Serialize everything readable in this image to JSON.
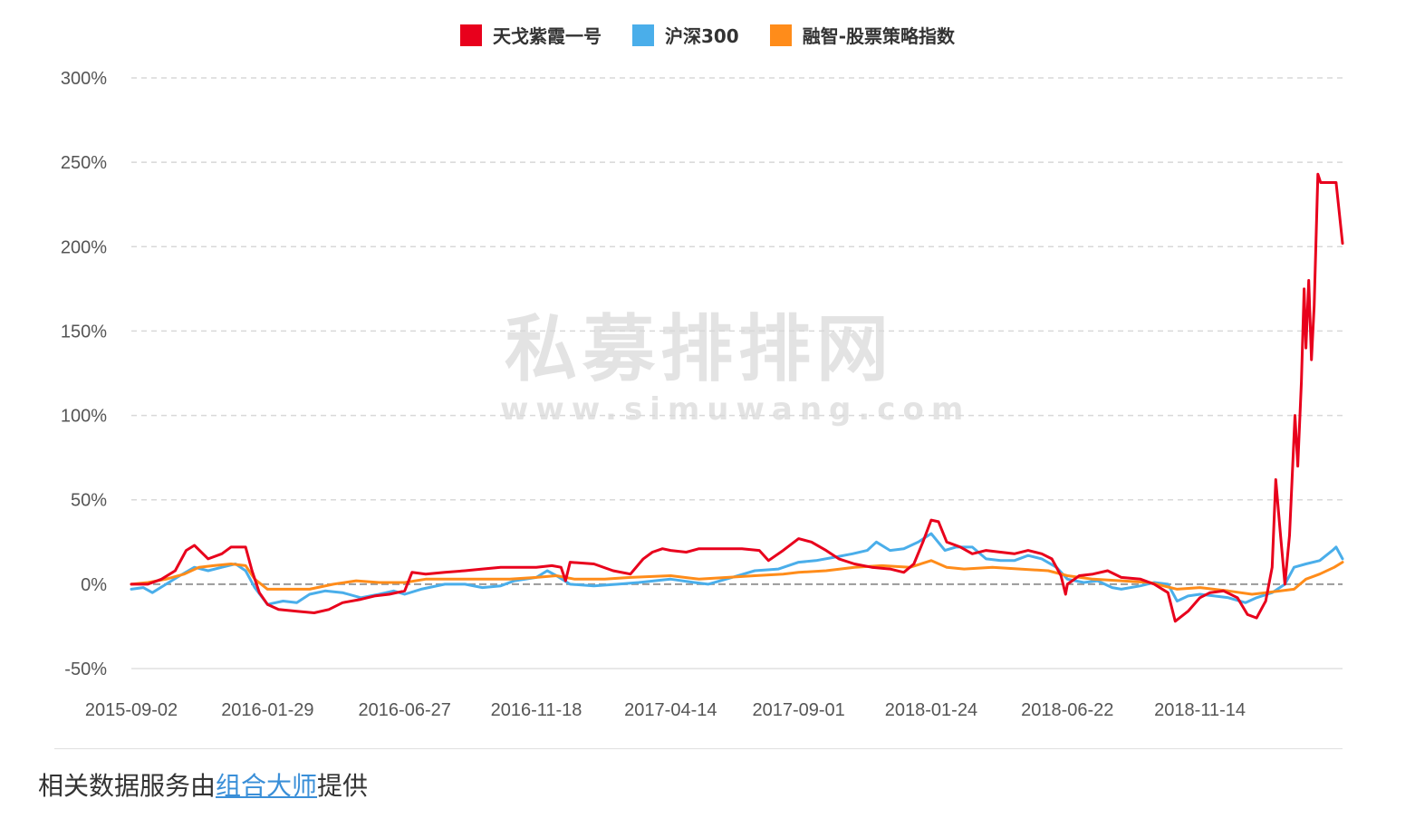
{
  "legend": [
    {
      "label": "天戈紫霞一号",
      "color": "#e8001c"
    },
    {
      "label": "沪深300",
      "color": "#4aaeea"
    },
    {
      "label": "融智-股票策略指数",
      "color": "#ff8c1a"
    }
  ],
  "watermark": {
    "main": "私募排排网",
    "sub": "www.simuwang.com"
  },
  "footer": {
    "prefix": "相关数据服务由",
    "link": "组合大师",
    "suffix": "提供"
  },
  "chart_data": {
    "type": "line",
    "title": "",
    "xlabel": "",
    "ylabel": "",
    "ylim": [
      -50,
      300
    ],
    "yticks": [
      "300%",
      "250%",
      "200%",
      "150%",
      "100%",
      "50%",
      "0%",
      "-50%"
    ],
    "ytick_values": [
      300,
      250,
      200,
      150,
      100,
      50,
      0,
      -50
    ],
    "xticks": [
      "2015-09-02",
      "2016-01-29",
      "2016-06-27",
      "2016-11-18",
      "2017-04-14",
      "2017-09-01",
      "2018-01-24",
      "2018-06-22",
      "2018-11-14"
    ],
    "x_end": "2019-04-19",
    "grid": "horizontal-dashed",
    "legend_position": "top-center",
    "series": [
      {
        "name": "天戈紫霞一号",
        "color": "#e8001c",
        "points": [
          [
            "2015-09-02",
            0
          ],
          [
            "2015-09-20",
            0
          ],
          [
            "2015-10-05",
            3
          ],
          [
            "2015-10-20",
            8
          ],
          [
            "2015-11-01",
            20
          ],
          [
            "2015-11-10",
            23
          ],
          [
            "2015-11-25",
            15
          ],
          [
            "2015-12-10",
            18
          ],
          [
            "2015-12-20",
            22
          ],
          [
            "2016-01-05",
            22
          ],
          [
            "2016-01-12",
            8
          ],
          [
            "2016-01-20",
            -5
          ],
          [
            "2016-01-29",
            -12
          ],
          [
            "2016-02-10",
            -15
          ],
          [
            "2016-03-01",
            -16
          ],
          [
            "2016-03-20",
            -17
          ],
          [
            "2016-04-05",
            -15
          ],
          [
            "2016-04-20",
            -11
          ],
          [
            "2016-05-10",
            -9
          ],
          [
            "2016-05-25",
            -7
          ],
          [
            "2016-06-10",
            -6
          ],
          [
            "2016-06-27",
            -4
          ],
          [
            "2016-07-05",
            7
          ],
          [
            "2016-07-20",
            6
          ],
          [
            "2016-08-10",
            7
          ],
          [
            "2016-09-01",
            8
          ],
          [
            "2016-09-20",
            9
          ],
          [
            "2016-10-10",
            10
          ],
          [
            "2016-10-30",
            10
          ],
          [
            "2016-11-18",
            10
          ],
          [
            "2016-12-05",
            11
          ],
          [
            "2016-12-15",
            10
          ],
          [
            "2016-12-20",
            2
          ],
          [
            "2016-12-25",
            13
          ],
          [
            "2017-01-20",
            12
          ],
          [
            "2017-02-10",
            8
          ],
          [
            "2017-03-01",
            6
          ],
          [
            "2017-03-15",
            15
          ],
          [
            "2017-03-25",
            19
          ],
          [
            "2017-04-05",
            21
          ],
          [
            "2017-04-14",
            20
          ],
          [
            "2017-05-01",
            19
          ],
          [
            "2017-05-15",
            21
          ],
          [
            "2017-06-10",
            21
          ],
          [
            "2017-07-01",
            21
          ],
          [
            "2017-07-20",
            20
          ],
          [
            "2017-07-30",
            14
          ],
          [
            "2017-08-15",
            20
          ],
          [
            "2017-09-01",
            27
          ],
          [
            "2017-09-15",
            25
          ],
          [
            "2017-10-01",
            20
          ],
          [
            "2017-10-15",
            15
          ],
          [
            "2017-11-01",
            12
          ],
          [
            "2017-11-20",
            10
          ],
          [
            "2017-12-10",
            9
          ],
          [
            "2017-12-25",
            7
          ],
          [
            "2018-01-05",
            12
          ],
          [
            "2018-01-15",
            25
          ],
          [
            "2018-01-24",
            38
          ],
          [
            "2018-02-01",
            37
          ],
          [
            "2018-02-10",
            25
          ],
          [
            "2018-02-25",
            22
          ],
          [
            "2018-03-10",
            18
          ],
          [
            "2018-03-25",
            20
          ],
          [
            "2018-04-10",
            19
          ],
          [
            "2018-04-25",
            18
          ],
          [
            "2018-05-10",
            20
          ],
          [
            "2018-05-25",
            18
          ],
          [
            "2018-06-05",
            15
          ],
          [
            "2018-06-15",
            5
          ],
          [
            "2018-06-20",
            -6
          ],
          [
            "2018-06-22",
            0
          ],
          [
            "2018-07-05",
            5
          ],
          [
            "2018-07-20",
            6
          ],
          [
            "2018-08-05",
            8
          ],
          [
            "2018-08-20",
            4
          ],
          [
            "2018-09-10",
            3
          ],
          [
            "2018-09-25",
            0
          ],
          [
            "2018-10-10",
            -5
          ],
          [
            "2018-10-18",
            -22
          ],
          [
            "2018-11-01",
            -16
          ],
          [
            "2018-11-14",
            -8
          ],
          [
            "2018-11-25",
            -5
          ],
          [
            "2018-12-10",
            -4
          ],
          [
            "2018-12-25",
            -8
          ],
          [
            "2019-01-05",
            -18
          ],
          [
            "2019-01-15",
            -20
          ],
          [
            "2019-01-25",
            -10
          ],
          [
            "2019-02-01",
            10
          ],
          [
            "2019-02-05",
            62
          ],
          [
            "2019-02-10",
            30
          ],
          [
            "2019-02-15",
            0
          ],
          [
            "2019-02-20",
            29
          ],
          [
            "2019-02-26",
            100
          ],
          [
            "2019-03-01",
            70
          ],
          [
            "2019-03-05",
            120
          ],
          [
            "2019-03-08",
            175
          ],
          [
            "2019-03-10",
            140
          ],
          [
            "2019-03-13",
            180
          ],
          [
            "2019-03-16",
            133
          ],
          [
            "2019-03-19",
            165
          ],
          [
            "2019-03-23",
            243
          ],
          [
            "2019-03-26",
            238
          ],
          [
            "2019-04-12",
            238
          ],
          [
            "2019-04-19",
            202
          ]
        ]
      },
      {
        "name": "沪深300",
        "color": "#4aaeea",
        "points": [
          [
            "2015-09-02",
            -3
          ],
          [
            "2015-09-15",
            -2
          ],
          [
            "2015-09-25",
            -5
          ],
          [
            "2015-10-10",
            0
          ],
          [
            "2015-10-25",
            5
          ],
          [
            "2015-11-10",
            10
          ],
          [
            "2015-11-25",
            8
          ],
          [
            "2015-12-10",
            10
          ],
          [
            "2015-12-25",
            12
          ],
          [
            "2016-01-05",
            8
          ],
          [
            "2016-01-15",
            -2
          ],
          [
            "2016-01-29",
            -12
          ],
          [
            "2016-02-15",
            -10
          ],
          [
            "2016-03-01",
            -11
          ],
          [
            "2016-03-15",
            -6
          ],
          [
            "2016-04-01",
            -4
          ],
          [
            "2016-04-20",
            -5
          ],
          [
            "2016-05-10",
            -8
          ],
          [
            "2016-05-30",
            -6
          ],
          [
            "2016-06-15",
            -4
          ],
          [
            "2016-06-27",
            -6
          ],
          [
            "2016-07-15",
            -3
          ],
          [
            "2016-08-10",
            0
          ],
          [
            "2016-09-01",
            0
          ],
          [
            "2016-09-20",
            -2
          ],
          [
            "2016-10-10",
            -1
          ],
          [
            "2016-10-25",
            2
          ],
          [
            "2016-11-18",
            4
          ],
          [
            "2016-11-30",
            8
          ],
          [
            "2016-12-10",
            5
          ],
          [
            "2016-12-25",
            0
          ],
          [
            "2017-01-20",
            -1
          ],
          [
            "2017-02-15",
            0
          ],
          [
            "2017-03-10",
            1
          ],
          [
            "2017-04-14",
            3
          ],
          [
            "2017-05-10",
            1
          ],
          [
            "2017-05-25",
            0
          ],
          [
            "2017-06-20",
            4
          ],
          [
            "2017-07-15",
            8
          ],
          [
            "2017-08-10",
            9
          ],
          [
            "2017-09-01",
            13
          ],
          [
            "2017-09-20",
            14
          ],
          [
            "2017-10-10",
            16
          ],
          [
            "2017-10-30",
            18
          ],
          [
            "2017-11-15",
            20
          ],
          [
            "2017-11-25",
            25
          ],
          [
            "2017-12-10",
            20
          ],
          [
            "2017-12-25",
            21
          ],
          [
            "2018-01-10",
            25
          ],
          [
            "2018-01-24",
            30
          ],
          [
            "2018-02-08",
            20
          ],
          [
            "2018-02-20",
            22
          ],
          [
            "2018-03-10",
            22
          ],
          [
            "2018-03-25",
            15
          ],
          [
            "2018-04-10",
            14
          ],
          [
            "2018-04-25",
            14
          ],
          [
            "2018-05-10",
            17
          ],
          [
            "2018-05-25",
            15
          ],
          [
            "2018-06-10",
            10
          ],
          [
            "2018-06-22",
            3
          ],
          [
            "2018-07-10",
            1
          ],
          [
            "2018-07-25",
            2
          ],
          [
            "2018-08-10",
            -2
          ],
          [
            "2018-08-20",
            -3
          ],
          [
            "2018-09-10",
            -1
          ],
          [
            "2018-09-25",
            1
          ],
          [
            "2018-10-10",
            0
          ],
          [
            "2018-10-20",
            -10
          ],
          [
            "2018-11-01",
            -7
          ],
          [
            "2018-11-14",
            -6
          ],
          [
            "2018-11-30",
            -7
          ],
          [
            "2018-12-15",
            -8
          ],
          [
            "2019-01-03",
            -11
          ],
          [
            "2019-01-15",
            -8
          ],
          [
            "2019-02-01",
            -5
          ],
          [
            "2019-02-15",
            0
          ],
          [
            "2019-02-25",
            10
          ],
          [
            "2019-03-10",
            12
          ],
          [
            "2019-03-25",
            14
          ],
          [
            "2019-04-08",
            20
          ],
          [
            "2019-04-12",
            22
          ],
          [
            "2019-04-19",
            15
          ]
        ]
      },
      {
        "name": "融智-股票策略指数",
        "color": "#ff8c1a",
        "points": [
          [
            "2015-09-02",
            0
          ],
          [
            "2015-09-20",
            1
          ],
          [
            "2015-10-10",
            3
          ],
          [
            "2015-10-30",
            6
          ],
          [
            "2015-11-15",
            10
          ],
          [
            "2015-12-01",
            11
          ],
          [
            "2015-12-20",
            12
          ],
          [
            "2016-01-05",
            11
          ],
          [
            "2016-01-15",
            3
          ],
          [
            "2016-01-29",
            -3
          ],
          [
            "2016-02-20",
            -3
          ],
          [
            "2016-03-15",
            -3
          ],
          [
            "2016-04-10",
            0
          ],
          [
            "2016-05-05",
            2
          ],
          [
            "2016-05-30",
            1
          ],
          [
            "2016-06-27",
            1
          ],
          [
            "2016-07-20",
            3
          ],
          [
            "2016-08-20",
            3
          ],
          [
            "2016-09-20",
            3
          ],
          [
            "2016-10-20",
            3
          ],
          [
            "2016-11-18",
            4
          ],
          [
            "2016-12-10",
            5
          ],
          [
            "2016-12-30",
            3
          ],
          [
            "2017-02-01",
            3
          ],
          [
            "2017-03-01",
            4
          ],
          [
            "2017-04-14",
            5
          ],
          [
            "2017-05-15",
            3
          ],
          [
            "2017-06-15",
            4
          ],
          [
            "2017-07-15",
            5
          ],
          [
            "2017-08-15",
            6
          ],
          [
            "2017-09-01",
            7
          ],
          [
            "2017-10-01",
            8
          ],
          [
            "2017-11-01",
            10
          ],
          [
            "2017-12-01",
            11
          ],
          [
            "2018-01-01",
            10
          ],
          [
            "2018-01-24",
            14
          ],
          [
            "2018-02-10",
            10
          ],
          [
            "2018-03-01",
            9
          ],
          [
            "2018-04-01",
            10
          ],
          [
            "2018-05-01",
            9
          ],
          [
            "2018-06-01",
            8
          ],
          [
            "2018-06-22",
            5
          ],
          [
            "2018-07-20",
            3
          ],
          [
            "2018-08-20",
            2
          ],
          [
            "2018-09-20",
            1
          ],
          [
            "2018-10-20",
            -3
          ],
          [
            "2018-11-14",
            -2
          ],
          [
            "2018-12-15",
            -4
          ],
          [
            "2019-01-10",
            -6
          ],
          [
            "2019-01-25",
            -5
          ],
          [
            "2019-02-10",
            -4
          ],
          [
            "2019-02-25",
            -3
          ],
          [
            "2019-03-10",
            3
          ],
          [
            "2019-03-25",
            6
          ],
          [
            "2019-04-10",
            10
          ],
          [
            "2019-04-19",
            13
          ]
        ]
      }
    ]
  }
}
